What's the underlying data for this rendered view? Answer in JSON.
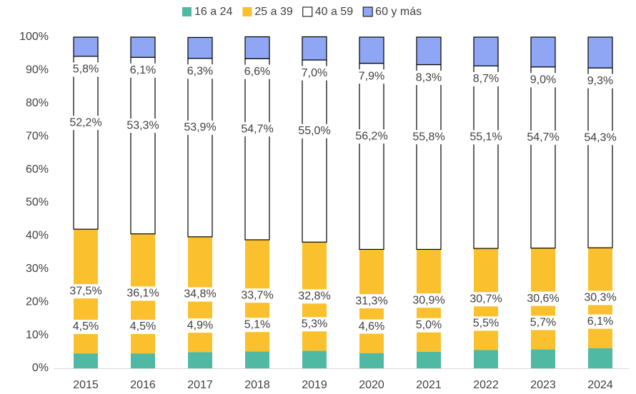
{
  "chart_data": {
    "type": "stacked_bar",
    "categories": [
      "2015",
      "2016",
      "2017",
      "2018",
      "2019",
      "2020",
      "2021",
      "2022",
      "2023",
      "2024"
    ],
    "series": [
      {
        "name": "16 a 24",
        "color": "#4fb9a3",
        "values": [
          4.5,
          4.5,
          4.9,
          5.1,
          5.3,
          4.6,
          5.0,
          5.5,
          5.7,
          6.1
        ],
        "value_labels": [
          "4,5%",
          "4,5%",
          "4,9%",
          "5,1%",
          "5,3%",
          "4,6%",
          "5,0%",
          "5,5%",
          "5,7%",
          "6,1%"
        ]
      },
      {
        "name": "25 a 39",
        "color": "#fbc02d",
        "values": [
          37.5,
          36.1,
          34.8,
          33.7,
          32.8,
          31.3,
          30.9,
          30.7,
          30.6,
          30.3
        ],
        "value_labels": [
          "37,5%",
          "36,1%",
          "34,8%",
          "33,7%",
          "32,8%",
          "31,3%",
          "30,9%",
          "30,7%",
          "30,6%",
          "30,3%"
        ]
      },
      {
        "name": "40 a 59",
        "color": "#ffffff",
        "values": [
          52.2,
          53.3,
          53.9,
          54.7,
          55.0,
          56.2,
          55.8,
          55.1,
          54.7,
          54.3
        ],
        "value_labels": [
          "52,2%",
          "53,3%",
          "53,9%",
          "54,7%",
          "55,0%",
          "56,2%",
          "55,8%",
          "55,1%",
          "54,7%",
          "54,3%"
        ]
      },
      {
        "name": "60 y más",
        "color": "#8ea6f4",
        "values": [
          5.8,
          6.1,
          6.3,
          6.6,
          7.0,
          7.9,
          8.3,
          8.7,
          9.0,
          9.3
        ],
        "value_labels": [
          "5,8%",
          "6,1%",
          "6,3%",
          "6,6%",
          "7,0%",
          "7,9%",
          "8,3%",
          "8,7%",
          "9,0%",
          "9,3%"
        ]
      }
    ],
    "ylim": [
      0,
      100
    ],
    "yticks": [
      {
        "value": 0,
        "label": "0%"
      },
      {
        "value": 10,
        "label": "10%"
      },
      {
        "value": 20,
        "label": "20%"
      },
      {
        "value": 30,
        "label": "30%"
      },
      {
        "value": 40,
        "label": "40%"
      },
      {
        "value": 50,
        "label": "50%"
      },
      {
        "value": 60,
        "label": "60%"
      },
      {
        "value": 70,
        "label": "70%"
      },
      {
        "value": 80,
        "label": "80%"
      },
      {
        "value": 90,
        "label": "90%"
      },
      {
        "value": 100,
        "label": "100%"
      }
    ],
    "legend": "top"
  }
}
